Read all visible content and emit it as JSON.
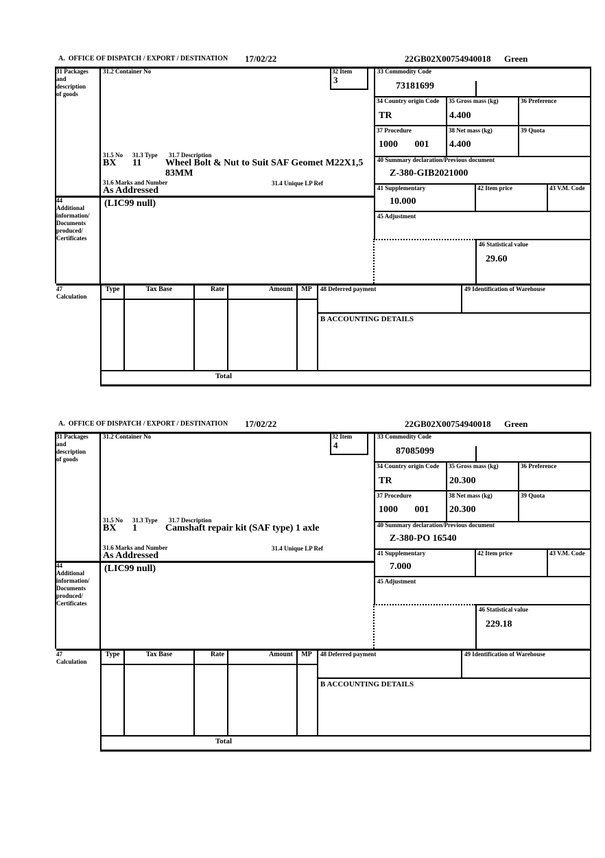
{
  "page": {
    "background": "#ffffff",
    "ink": "#000000"
  },
  "header": {
    "date": "17/02/22",
    "entry_no": "22GB02X00754940018",
    "route": "Green"
  },
  "labels": {
    "office_title": "A.  OFFICE OF DISPATCH / EXPORT / DESTINATION",
    "box31": "31 Packages\nand\ndescription\nof goods",
    "container_no": "31.2 Container No",
    "item32": "32 Item",
    "commodity33": "33 Commodity Code",
    "country34": "34 Country origin Code",
    "gross35": "35 Gross mass (kg)",
    "preference36": "36 Preference",
    "procedure37": "37 Procedure",
    "net38": "38 Net mass (kg)",
    "quota39": "39 Quota",
    "no315": "31.5 No",
    "type313": "31.3 Type",
    "desc317": "31.7 Description",
    "marks316": "31.6 Marks and Number",
    "lpref314": "31.4 Unique LP Ref",
    "summary40": "40 Summary declaration/Previous document",
    "suppl41": "41 Supplementary",
    "price42": "42 Item price",
    "vm43": "43 V.M. Code",
    "box44": "44\nAdditional\ninformation/\nDocuments\nproduced/\nCertificates",
    "adjustment45": "45 Adjustment",
    "stat46": "46 Statistical value",
    "box47": "47\nCalculation",
    "col_type": "Type",
    "col_tax_base": "Tax Base",
    "col_rate": "Rate",
    "col_amount": "Amount",
    "col_mp": "MP",
    "deferred48": "48 Deferred payment",
    "warehouse49": "49 Identification of Warehouse",
    "accounting": "B ACCOUNTING DETAILS",
    "total": "Total"
  },
  "items": [
    {
      "item_no": "3",
      "commodity_code": "73181699",
      "country_origin": "TR",
      "gross_mass": "4.400",
      "procedure": "1000       001",
      "net_mass": "4.400",
      "summary_declaration": "Z-380-GIB2021000",
      "supplementary": "10.000",
      "statistical_value": "29.60",
      "additional_info": "(LIC99 null)",
      "package_no": "BX",
      "package_type": "11",
      "description": "Wheel Bolt & Nut to Suit SAF Geomet M22X1,5\n83MM",
      "marks": "As Addressed"
    },
    {
      "item_no": "4",
      "commodity_code": "87085099",
      "country_origin": "TR",
      "gross_mass": "20.300",
      "procedure": "1000       001",
      "net_mass": "20.300",
      "summary_declaration": "Z-380-PO 16540",
      "supplementary": "7.000",
      "statistical_value": "229.18",
      "additional_info": "(LIC99 null)",
      "package_no": "BX",
      "package_type": "1",
      "description": "Camshaft repair kit (SAF type) 1 axle",
      "marks": "As Addressed"
    }
  ]
}
